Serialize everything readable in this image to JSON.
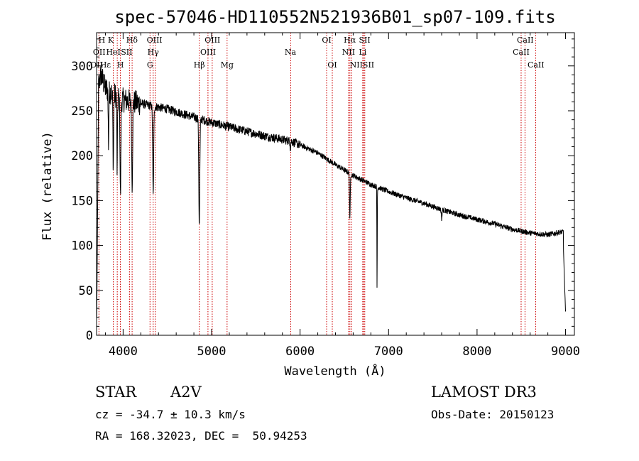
{
  "chart_data": {
    "type": "line",
    "title": "spec-57046-HD110552N521936B01_sp07-109.fits",
    "xlabel": "Wavelength (Å)",
    "ylabel": "Flux (relative)",
    "xlim": [
      3700,
      9100
    ],
    "ylim": [
      0,
      337
    ],
    "xticks": [
      4000,
      5000,
      6000,
      7000,
      8000,
      9000
    ],
    "yticks": [
      0,
      50,
      100,
      150,
      200,
      250,
      300
    ],
    "continuum": {
      "x": [
        3700,
        3750,
        3800,
        3900,
        4000,
        4100,
        4200,
        4300,
        4500,
        4700,
        4900,
        5000,
        5200,
        5400,
        5600,
        5800,
        5900,
        6000,
        6200,
        6400,
        6600,
        6700,
        6800,
        7000,
        7200,
        7400,
        7600,
        7800,
        8000,
        8200,
        8400,
        8600,
        8800,
        8950
      ],
      "y": [
        270,
        290,
        275,
        268,
        262,
        260,
        258,
        256,
        252,
        246,
        240,
        237,
        232,
        227,
        222,
        218,
        216,
        212,
        203,
        190,
        178,
        173,
        168,
        160,
        153,
        147,
        140,
        134,
        129,
        124,
        118,
        114,
        112,
        115
      ]
    },
    "absorption_lines": [
      {
        "x": 3835,
        "depth": 60,
        "width": 5
      },
      {
        "x": 3889,
        "depth": 80,
        "width": 6
      },
      {
        "x": 3933,
        "depth": 85,
        "width": 5
      },
      {
        "x": 3970,
        "depth": 110,
        "width": 7
      },
      {
        "x": 4102,
        "depth": 90,
        "width": 8
      },
      {
        "x": 4340,
        "depth": 100,
        "width": 8
      },
      {
        "x": 4861,
        "depth": 120,
        "width": 8
      },
      {
        "x": 5890,
        "depth": 8,
        "width": 4
      },
      {
        "x": 6563,
        "depth": 50,
        "width": 6
      },
      {
        "x": 6870,
        "depth": 115,
        "width": 3
      },
      {
        "x": 7600,
        "depth": 10,
        "width": 6
      }
    ],
    "spectral_lines": [
      {
        "label": "Hβ",
        "x": 4861
      },
      {
        "label": "Hγ",
        "x": 4340
      },
      {
        "label": "Hδ",
        "x": 4102
      },
      {
        "label": "Hα",
        "x": 6563
      },
      {
        "label": "K",
        "x": 3934
      },
      {
        "label": "H",
        "x": 3969
      },
      {
        "label": "G",
        "x": 4304
      },
      {
        "label": "Mg",
        "x": 5175
      },
      {
        "label": "Na",
        "x": 5894
      },
      {
        "label": "CaII",
        "x": 8498
      },
      {
        "label": "CaII",
        "x": 8542
      },
      {
        "label": "CaII",
        "x": 8662
      },
      {
        "label": "OII",
        "x": 3727
      },
      {
        "label": "HeI",
        "x": 3889
      },
      {
        "label": "SII",
        "x": 4072
      },
      {
        "label": "OIII",
        "x": 4363
      },
      {
        "label": "OIII",
        "x": 4959
      },
      {
        "label": "OIII",
        "x": 5007
      },
      {
        "label": "OI",
        "x": 6300
      },
      {
        "label": "OI",
        "x": 6364
      },
      {
        "label": "NII",
        "x": 6548
      },
      {
        "label": "NII",
        "x": 6583
      },
      {
        "label": "SII",
        "x": 6717
      },
      {
        "label": "SII",
        "x": 6731
      },
      {
        "label": "Li",
        "x": 6708
      }
    ]
  },
  "label_rows": [
    [
      {
        "text": "H",
        "x": 3760
      },
      {
        "text": "K",
        "x": 3860
      },
      {
        "text": "Hδ",
        "x": 4100
      },
      {
        "text": "OIII",
        "x": 4355
      },
      {
        "text": "OIII",
        "x": 5010
      },
      {
        "text": "OI",
        "x": 6300
      },
      {
        "text": "Hα",
        "x": 6562
      },
      {
        "text": "SII",
        "x": 6730
      },
      {
        "text": "CaII",
        "x": 8545
      }
    ],
    [
      {
        "text": "OII",
        "x": 3730
      },
      {
        "text": "HeI",
        "x": 3890
      },
      {
        "text": "SII",
        "x": 4040
      },
      {
        "text": "Hγ",
        "x": 4340
      },
      {
        "text": "OIII",
        "x": 4960
      },
      {
        "text": "Na",
        "x": 5890
      },
      {
        "text": "NII",
        "x": 6548
      },
      {
        "text": "Li",
        "x": 6708
      },
      {
        "text": "CaII",
        "x": 8498
      }
    ],
    [
      {
        "text": "OII",
        "x": 3700
      },
      {
        "text": "Hε",
        "x": 3800
      },
      {
        "text": "H",
        "x": 3970
      },
      {
        "text": "G",
        "x": 4304
      },
      {
        "text": "Hβ",
        "x": 4861
      },
      {
        "text": "Mg",
        "x": 5175
      },
      {
        "text": "OI",
        "x": 6364
      },
      {
        "text": "NIISII",
        "x": 6700
      },
      {
        "text": "CaII",
        "x": 8665
      }
    ]
  ],
  "info": {
    "object_type": "STAR",
    "spectral_class": "A2V",
    "survey": "LAMOST DR3",
    "redshift": "cz = -34.7 ± 10.3 km/s",
    "obs_date": "Obs-Date: 20150123",
    "coords": "RA = 168.32023, DEC =  50.94253"
  },
  "colors": {
    "spectrum": "#000000",
    "line_markers": "#cc0000",
    "axes": "#000000"
  }
}
